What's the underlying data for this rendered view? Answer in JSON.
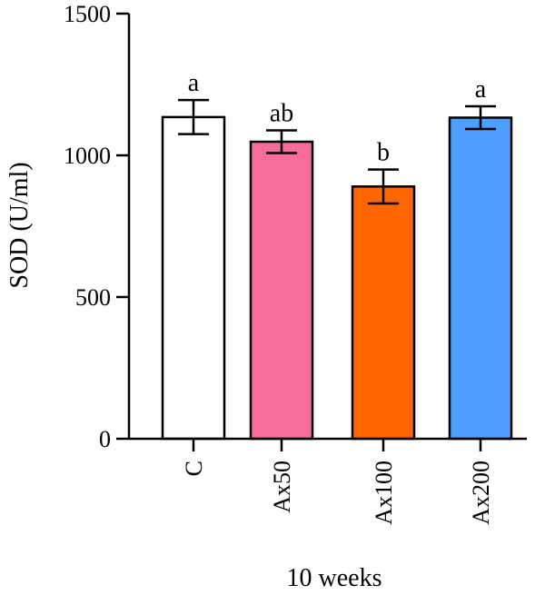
{
  "chart_data": {
    "type": "bar",
    "ylabel": "SOD (U/ml)",
    "xlabel": "10 weeks",
    "categories": [
      "C",
      "Ax50",
      "Ax100",
      "Ax200"
    ],
    "values": [
      1135,
      1048,
      890,
      1133
    ],
    "errors": [
      60,
      40,
      60,
      40
    ],
    "significance": [
      "a",
      "ab",
      "b",
      "a"
    ],
    "colors": [
      "#ffffff",
      "#f76d99",
      "#ff6600",
      "#4e9ffb"
    ],
    "ylim": [
      0,
      1500
    ],
    "yticks": [
      0,
      500,
      1000,
      1500
    ],
    "ytick_labels": [
      "0",
      "500",
      "1000",
      "1500"
    ],
    "grid": false
  }
}
